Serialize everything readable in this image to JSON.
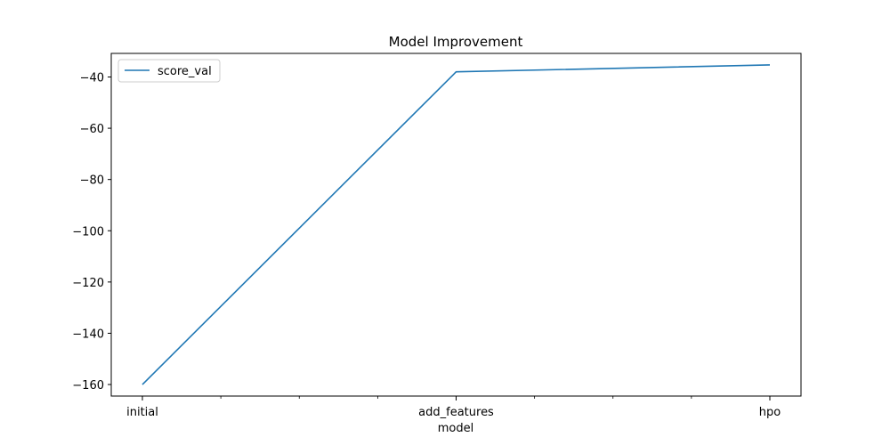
{
  "chart_data": {
    "type": "line",
    "title": "Model Improvement",
    "xlabel": "model",
    "ylabel": "",
    "categories": [
      "initial",
      "add_features",
      "hpo"
    ],
    "series": [
      {
        "name": "score_val",
        "color": "#1f77b4",
        "values": [
          -160.0,
          -38.0,
          -35.3
        ]
      }
    ],
    "ylim": [
      -164.5,
      -30.8
    ],
    "y_ticks": [
      -160,
      -140,
      -120,
      -100,
      -80,
      -60,
      -40
    ],
    "minor_x_ticks": 8,
    "grid": false,
    "legend": "upper-left"
  }
}
